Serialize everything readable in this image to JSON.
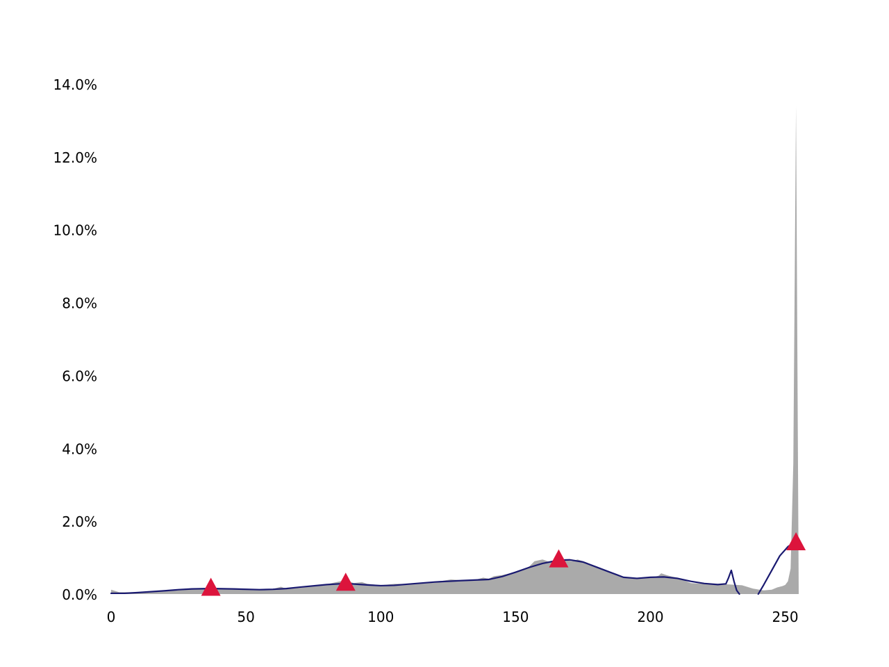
{
  "chart_data": {
    "type": "area",
    "title": "",
    "xlabel": "",
    "ylabel": "",
    "xlim": [
      0,
      255
    ],
    "ylim": [
      0,
      14.0
    ],
    "x_ticks": [
      0,
      50,
      100,
      150,
      200,
      250
    ],
    "y_ticks": [
      0,
      2,
      4,
      6,
      8,
      10,
      12,
      14
    ],
    "y_tick_labels": [
      "0.0%",
      "2.0%",
      "4.0%",
      "6.0%",
      "8.0%",
      "10.0%",
      "12.0%",
      "14.0%"
    ],
    "grid": false,
    "legend": "none",
    "histogram": {
      "color": "#aaaaaa",
      "points": [
        [
          0,
          0.12
        ],
        [
          3,
          0.05
        ],
        [
          10,
          0.05
        ],
        [
          20,
          0.09
        ],
        [
          25,
          0.13
        ],
        [
          30,
          0.16
        ],
        [
          37,
          0.17
        ],
        [
          45,
          0.16
        ],
        [
          55,
          0.13
        ],
        [
          60,
          0.14
        ],
        [
          63,
          0.2
        ],
        [
          65,
          0.14
        ],
        [
          70,
          0.17
        ],
        [
          80,
          0.27
        ],
        [
          85,
          0.35
        ],
        [
          87,
          0.38
        ],
        [
          90,
          0.3
        ],
        [
          93,
          0.33
        ],
        [
          95,
          0.28
        ],
        [
          100,
          0.24
        ],
        [
          105,
          0.28
        ],
        [
          110,
          0.28
        ],
        [
          120,
          0.33
        ],
        [
          126,
          0.4
        ],
        [
          130,
          0.38
        ],
        [
          135,
          0.39
        ],
        [
          138,
          0.45
        ],
        [
          140,
          0.42
        ],
        [
          142,
          0.49
        ],
        [
          145,
          0.52
        ],
        [
          150,
          0.6
        ],
        [
          155,
          0.75
        ],
        [
          157,
          0.9
        ],
        [
          160,
          0.95
        ],
        [
          163,
          0.87
        ],
        [
          165,
          0.95
        ],
        [
          168,
          0.95
        ],
        [
          171,
          0.9
        ],
        [
          173,
          0.95
        ],
        [
          176,
          0.88
        ],
        [
          180,
          0.75
        ],
        [
          185,
          0.58
        ],
        [
          190,
          0.45
        ],
        [
          195,
          0.42
        ],
        [
          200,
          0.45
        ],
        [
          203,
          0.5
        ],
        [
          204,
          0.57
        ],
        [
          206,
          0.52
        ],
        [
          208,
          0.48
        ],
        [
          210,
          0.45
        ],
        [
          215,
          0.3
        ],
        [
          220,
          0.28
        ],
        [
          225,
          0.28
        ],
        [
          230,
          0.26
        ],
        [
          234,
          0.24
        ],
        [
          238,
          0.15
        ],
        [
          242,
          0.1
        ],
        [
          245,
          0.12
        ],
        [
          247,
          0.18
        ],
        [
          249,
          0.22
        ],
        [
          250,
          0.25
        ],
        [
          251,
          0.35
        ],
        [
          252,
          0.7
        ],
        [
          253,
          3.6
        ],
        [
          254,
          13.4
        ],
        [
          255,
          0.0
        ]
      ]
    },
    "kde": {
      "color": "#191970",
      "segments": [
        [
          [
            0,
            0.02
          ],
          [
            5,
            0.02
          ],
          [
            10,
            0.04
          ],
          [
            20,
            0.09
          ],
          [
            25,
            0.12
          ],
          [
            30,
            0.14
          ],
          [
            37,
            0.15
          ],
          [
            45,
            0.14
          ],
          [
            55,
            0.12
          ],
          [
            60,
            0.13
          ],
          [
            65,
            0.15
          ],
          [
            70,
            0.19
          ],
          [
            80,
            0.26
          ],
          [
            87,
            0.29
          ],
          [
            95,
            0.25
          ],
          [
            100,
            0.23
          ],
          [
            105,
            0.24
          ],
          [
            110,
            0.27
          ],
          [
            120,
            0.33
          ],
          [
            130,
            0.37
          ],
          [
            140,
            0.4
          ],
          [
            145,
            0.48
          ],
          [
            150,
            0.6
          ],
          [
            155,
            0.73
          ],
          [
            160,
            0.84
          ],
          [
            166,
            0.93
          ],
          [
            170,
            0.94
          ],
          [
            175,
            0.88
          ],
          [
            180,
            0.74
          ],
          [
            185,
            0.6
          ],
          [
            190,
            0.46
          ],
          [
            195,
            0.43
          ],
          [
            200,
            0.46
          ],
          [
            205,
            0.47
          ],
          [
            210,
            0.43
          ],
          [
            215,
            0.35
          ],
          [
            220,
            0.29
          ],
          [
            225,
            0.26
          ],
          [
            228,
            0.28
          ],
          [
            229,
            0.45
          ],
          [
            230,
            0.65
          ],
          [
            231,
            0.35
          ],
          [
            232,
            0.1
          ],
          [
            233,
            0.0
          ]
        ],
        [
          [
            240,
            0.0
          ],
          [
            242,
            0.25
          ],
          [
            245,
            0.65
          ],
          [
            248,
            1.05
          ],
          [
            251,
            1.3
          ],
          [
            253,
            1.4
          ]
        ]
      ]
    },
    "peaks": {
      "color": "#dc143c",
      "marker": "triangle-up",
      "points": [
        [
          37,
          0.15
        ],
        [
          87,
          0.29
        ],
        [
          166,
          0.93
        ],
        [
          254,
          1.4
        ]
      ]
    }
  }
}
